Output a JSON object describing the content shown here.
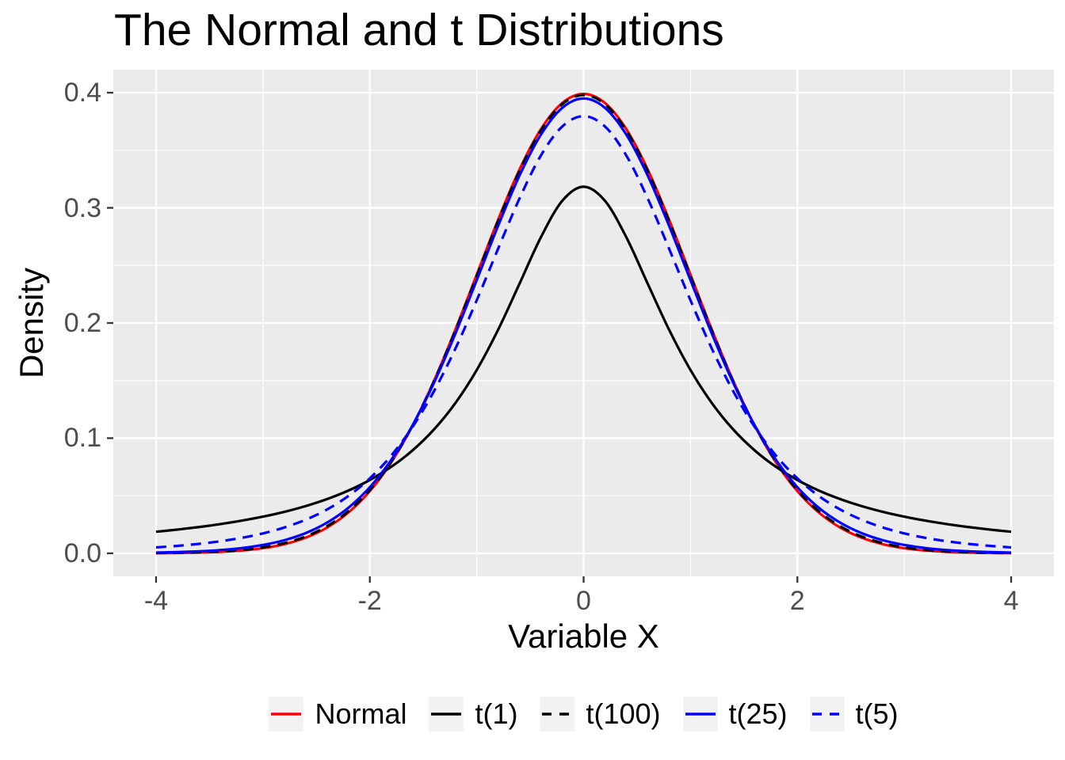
{
  "colors": {
    "background": "#FFFFFF",
    "panel_bg": "#EBEBEB",
    "grid": "#FFFFFF",
    "axis_text": "#4D4D4D",
    "tick_mark": "#333333",
    "legend_key_bg": "#F2F2F2",
    "title_text": "#000000"
  },
  "chart_data": {
    "type": "line",
    "title": "The Normal and t Distributions",
    "xlabel": "Variable X",
    "ylabel": "Density",
    "xlim": [
      -4,
      4
    ],
    "ylim": [
      0,
      0.4
    ],
    "grid": true,
    "legend_position": "bottom",
    "x_ticks": [
      "-4",
      "-2",
      "0",
      "2",
      "4"
    ],
    "x_tick_values": [
      -4,
      -2,
      0,
      2,
      4
    ],
    "x_minor_tick_values": [
      -3,
      -1,
      1,
      3
    ],
    "y_ticks": [
      "0.0",
      "0.1",
      "0.2",
      "0.3",
      "0.4"
    ],
    "y_tick_values": [
      0,
      0.1,
      0.2,
      0.3,
      0.4
    ],
    "y_minor_tick_values": [
      0.05,
      0.15,
      0.25,
      0.35
    ],
    "x": [
      -4,
      -3.8,
      -3.6,
      -3.4,
      -3.2,
      -3,
      -2.8,
      -2.6,
      -2.4,
      -2.2,
      -2,
      -1.8,
      -1.6,
      -1.4,
      -1.2,
      -1,
      -0.8,
      -0.6,
      -0.4,
      -0.2,
      0,
      0.2,
      0.4,
      0.6,
      0.8,
      1,
      1.2,
      1.4,
      1.6,
      1.8,
      2,
      2.2,
      2.4,
      2.6,
      2.8,
      3,
      3.2,
      3.4,
      3.6,
      3.8,
      4
    ],
    "series": [
      {
        "name": "Normal",
        "color": "#FF0000",
        "linetype": "solid",
        "values": [
          0.00013,
          0.00029,
          0.00061,
          0.00123,
          0.00238,
          0.00443,
          0.00792,
          0.01358,
          0.02239,
          0.03547,
          0.05399,
          0.07895,
          0.11092,
          0.14973,
          0.19419,
          0.24197,
          0.28969,
          0.33322,
          0.36827,
          0.39104,
          0.39894,
          0.39104,
          0.36827,
          0.33322,
          0.28969,
          0.24197,
          0.19419,
          0.14973,
          0.11092,
          0.07895,
          0.05399,
          0.03547,
          0.02239,
          0.01358,
          0.00792,
          0.00443,
          0.00238,
          0.00123,
          0.00061,
          0.00029,
          0.00013
        ]
      },
      {
        "name": "t(1)",
        "color": "#000000",
        "linetype": "solid",
        "values": [
          0.01872,
          0.02062,
          0.0228,
          0.02534,
          0.02832,
          0.03183,
          0.03601,
          0.04102,
          0.04709,
          0.0545,
          0.06366,
          0.07508,
          0.08941,
          0.10754,
          0.13045,
          0.15915,
          0.19409,
          0.23405,
          0.2744,
          0.30607,
          0.31831,
          0.30607,
          0.2744,
          0.23405,
          0.19409,
          0.15915,
          0.13045,
          0.10754,
          0.08941,
          0.07508,
          0.06366,
          0.0545,
          0.04709,
          0.04102,
          0.03601,
          0.03183,
          0.02832,
          0.02534,
          0.0228,
          0.02062,
          0.01872
        ]
      },
      {
        "name": "t(100)",
        "color": "#000000",
        "linetype": "dashed",
        "values": [
          0.00022,
          0.00044,
          0.00085,
          0.00159,
          0.00289,
          0.00513,
          0.0088,
          0.01461,
          0.02353,
          0.03659,
          0.05492,
          0.07952,
          0.11103,
          0.14933,
          0.19331,
          0.24077,
          0.28834,
          0.33191,
          0.36709,
          0.39,
          0.39795,
          0.39,
          0.36709,
          0.33191,
          0.28834,
          0.24077,
          0.19331,
          0.14933,
          0.11103,
          0.07952,
          0.05492,
          0.03659,
          0.02353,
          0.01461,
          0.0088,
          0.00513,
          0.00289,
          0.00159,
          0.00085,
          0.00044,
          0.00022
        ]
      },
      {
        "name": "t(25)",
        "color": "#0000FF",
        "linetype": "solid",
        "values": [
          0.00064,
          0.00105,
          0.00173,
          0.00282,
          0.00455,
          0.00726,
          0.01138,
          0.01757,
          0.02666,
          0.03958,
          0.05736,
          0.08101,
          0.1112,
          0.14806,
          0.19072,
          0.23721,
          0.28434,
          0.32798,
          0.36353,
          0.38685,
          0.39497,
          0.38685,
          0.36353,
          0.32798,
          0.28434,
          0.23721,
          0.19072,
          0.14806,
          0.1112,
          0.08101,
          0.05736,
          0.03958,
          0.02666,
          0.01757,
          0.01138,
          0.00726,
          0.00455,
          0.00282,
          0.00173,
          0.00105,
          0.00064
        ]
      },
      {
        "name": "t(5)",
        "color": "#0000FF",
        "linetype": "dashed",
        "values": [
          0.00512,
          0.00646,
          0.00819,
          0.01045,
          0.01341,
          0.01729,
          0.02242,
          0.02918,
          0.03809,
          0.0498,
          0.06509,
          0.08481,
          0.10982,
          0.14074,
          0.17766,
          0.21968,
          0.26449,
          0.30811,
          0.34538,
          0.37064,
          0.37961,
          0.37064,
          0.34538,
          0.30811,
          0.26449,
          0.21968,
          0.17766,
          0.14074,
          0.10982,
          0.08481,
          0.06509,
          0.0498,
          0.03809,
          0.02918,
          0.02242,
          0.01729,
          0.01341,
          0.01045,
          0.00819,
          0.00646,
          0.00512
        ]
      }
    ]
  }
}
